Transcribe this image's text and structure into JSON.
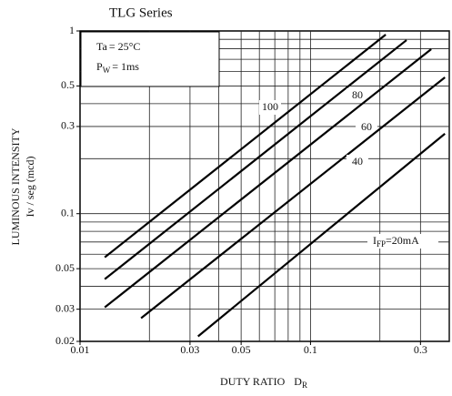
{
  "chart_data": {
    "type": "line",
    "title": "TLG Series",
    "x_label": {
      "text": "DUTY RATIO",
      "symbol": "D",
      "subscript": "R"
    },
    "y_label": [
      "LUMINOUS INTENSITY",
      "Iv / seg  (mcd)"
    ],
    "conditions": [
      {
        "symbol": "Ta",
        "text": "= 25°C"
      },
      {
        "symbol": "P",
        "subscript": "W",
        "text": "= 1ms"
      }
    ],
    "log_x": true,
    "log_y": true,
    "grid": true,
    "xlim": [
      0.01,
      0.4
    ],
    "ylim": [
      0.02,
      1
    ],
    "xticks": [
      0.01,
      0.03,
      0.05,
      0.1,
      0.3
    ],
    "yticks": [
      0.02,
      0.03,
      0.05,
      0.1,
      0.3,
      0.5,
      1
    ],
    "xgrid": [
      0.02,
      0.03,
      0.04,
      0.05,
      0.06,
      0.07,
      0.08,
      0.09,
      0.1,
      0.2,
      0.3,
      0.4
    ],
    "ygrid": [
      0.03,
      0.04,
      0.05,
      0.06,
      0.07,
      0.08,
      0.09,
      0.1,
      0.2,
      0.3,
      0.4,
      0.5,
      0.6,
      0.7,
      0.8,
      0.9
    ],
    "series": [
      {
        "name": "100",
        "color": "#000000",
        "x": [
          0.0128,
          0.212
        ],
        "values": [
          0.0577,
          0.955
        ]
      },
      {
        "name": "80",
        "color": "#000000",
        "x": [
          0.0128,
          0.261
        ],
        "values": [
          0.0438,
          0.891
        ]
      },
      {
        "name": "60",
        "color": "#000000",
        "x": [
          0.0128,
          0.334
        ],
        "values": [
          0.0307,
          0.795
        ]
      },
      {
        "name": "40",
        "color": "#000000",
        "x": [
          0.0184,
          0.383
        ],
        "values": [
          0.0268,
          0.557
        ]
      },
      {
        "name": "=20mA",
        "prefix": "I",
        "subscript": "FP",
        "color": "#000000",
        "x": [
          0.0325,
          0.383
        ],
        "values": [
          0.0213,
          0.274
        ]
      }
    ]
  }
}
